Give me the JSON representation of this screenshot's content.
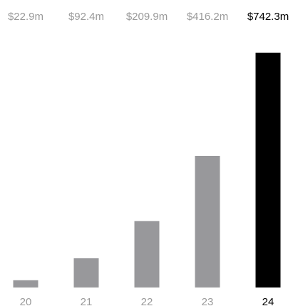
{
  "chart_data": {
    "type": "bar",
    "categories": [
      "20",
      "21",
      "22",
      "23",
      "24"
    ],
    "values": [
      22.9,
      92.4,
      209.9,
      416.2,
      742.3
    ],
    "value_labels": [
      "$22.9m",
      "$92.4m",
      "$209.9m",
      "$416.2m",
      "$742.3m"
    ],
    "highlight_index": 4,
    "grid": false,
    "legend": "none",
    "ylim": [
      0,
      742.3
    ]
  },
  "colors": {
    "bar": "#98989b",
    "bar_highlight": "#000000",
    "label": "#9a9a9a",
    "label_highlight": "#000000",
    "background": "#ffffff"
  }
}
